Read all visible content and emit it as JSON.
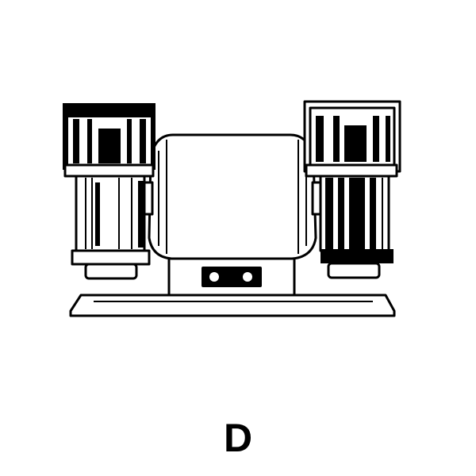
{
  "figure": {
    "label": "D",
    "subject": "bench-grinder-illustration"
  },
  "colors": {
    "ink": "#000000",
    "paper": "#ffffff"
  }
}
